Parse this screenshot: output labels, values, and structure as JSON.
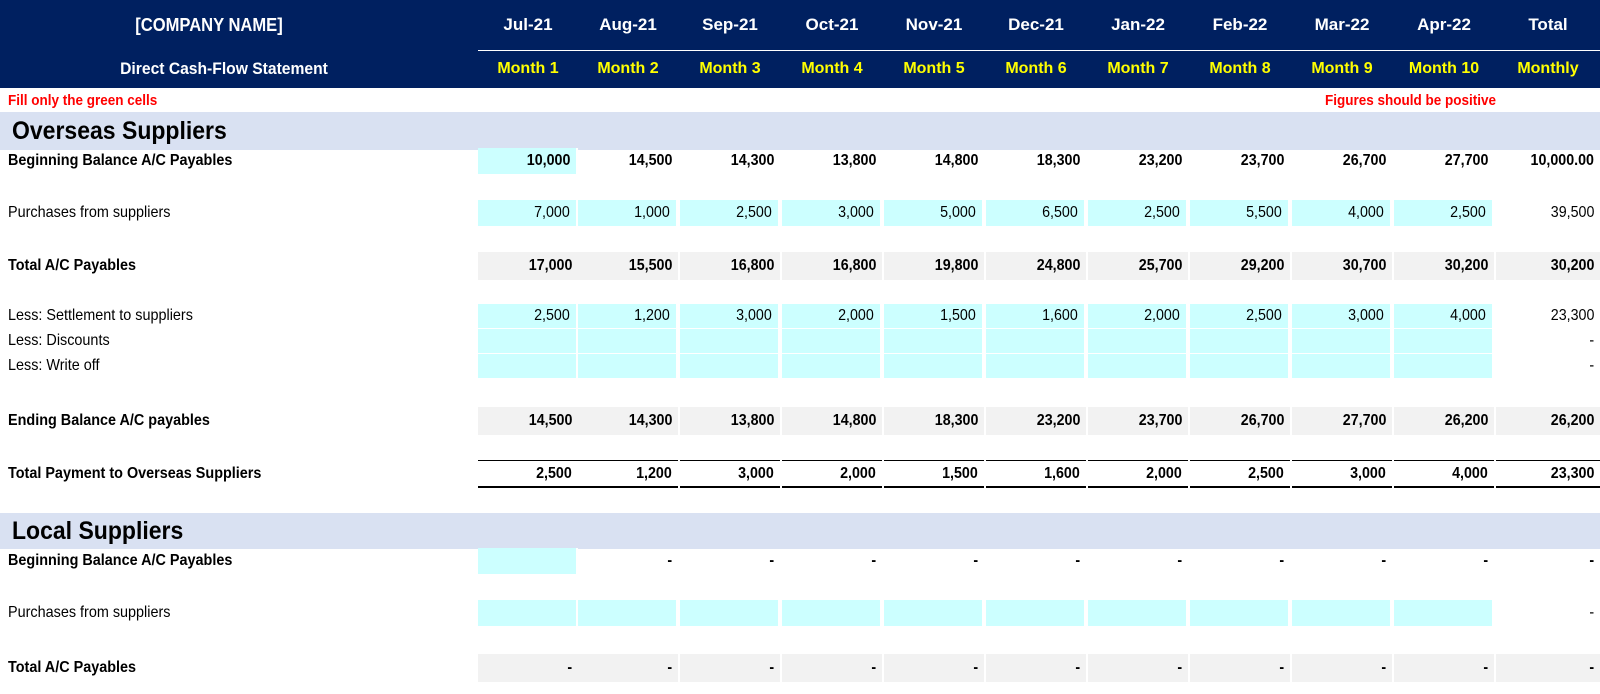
{
  "header": {
    "company": "[COMPANY NAME]",
    "subtitle": "Direct Cash-Flow Statement",
    "months": [
      "Jul-21",
      "Aug-21",
      "Sep-21",
      "Oct-21",
      "Nov-21",
      "Dec-21",
      "Jan-22",
      "Feb-22",
      "Mar-22",
      "Apr-22"
    ],
    "month_labels": [
      "Month 1",
      "Month 2",
      "Month 3",
      "Month 4",
      "Month 5",
      "Month 6",
      "Month 7",
      "Month 8",
      "Month 9",
      "Month 10"
    ],
    "total": "Total",
    "total_sub": "Monthly"
  },
  "notes": {
    "left": "Fill only the green cells",
    "right": "Figures should be positive"
  },
  "overseas": {
    "title": "Overseas Suppliers",
    "beginning": {
      "label": "Beginning Balance A/C Payables",
      "values": [
        "10,000",
        "14,500",
        "14,300",
        "13,800",
        "14,800",
        "18,300",
        "23,200",
        "23,700",
        "26,700",
        "27,700"
      ],
      "total": "10,000.00"
    },
    "purchases": {
      "label": "Purchases from suppliers",
      "values": [
        "7,000",
        "1,000",
        "2,500",
        "3,000",
        "5,000",
        "6,500",
        "2,500",
        "5,500",
        "4,000",
        "2,500"
      ],
      "total": "39,500"
    },
    "total_payables": {
      "label": "Total A/C Payables",
      "values": [
        "17,000",
        "15,500",
        "16,800",
        "16,800",
        "19,800",
        "24,800",
        "25,700",
        "29,200",
        "30,700",
        "30,200"
      ],
      "total": "30,200"
    },
    "settlement": {
      "label": "Less: Settlement to suppliers",
      "values": [
        "2,500",
        "1,200",
        "3,000",
        "2,000",
        "1,500",
        "1,600",
        "2,000",
        "2,500",
        "3,000",
        "4,000"
      ],
      "total": "23,300"
    },
    "discounts": {
      "label": "Less: Discounts",
      "values": [
        "",
        "",
        "",
        "",
        "",
        "",
        "",
        "",
        "",
        ""
      ],
      "total": "-"
    },
    "writeoff": {
      "label": "Less: Write off",
      "values": [
        "",
        "",
        "",
        "",
        "",
        "",
        "",
        "",
        "",
        ""
      ],
      "total": "-"
    },
    "ending": {
      "label": "Ending Balance A/C payables",
      "values": [
        "14,500",
        "14,300",
        "13,800",
        "14,800",
        "18,300",
        "23,200",
        "23,700",
        "26,700",
        "27,700",
        "26,200"
      ],
      "total": "26,200"
    },
    "payment": {
      "label": "Total Payment to Overseas Suppliers",
      "values": [
        "2,500",
        "1,200",
        "3,000",
        "2,000",
        "1,500",
        "1,600",
        "2,000",
        "2,500",
        "3,000",
        "4,000"
      ],
      "total": "23,300"
    }
  },
  "local": {
    "title": "Local Suppliers",
    "beginning": {
      "label": "Beginning Balance A/C Payables",
      "values": [
        "",
        "-",
        "-",
        "-",
        "-",
        "-",
        "-",
        "-",
        "-",
        "-"
      ],
      "total": "-"
    },
    "purchases": {
      "label": "Purchases from suppliers",
      "values": [
        "",
        "",
        "",
        "",
        "",
        "",
        "",
        "",
        "",
        ""
      ],
      "total": "-"
    },
    "total_payables": {
      "label": "Total A/C Payables",
      "values": [
        "-",
        "-",
        "-",
        "-",
        "-",
        "-",
        "-",
        "-",
        "-",
        "-"
      ],
      "total": "-"
    }
  },
  "colors": {
    "header_bg": "#002060",
    "header_month_text": "#ffff00",
    "note_text": "#ff0000",
    "section_bg": "#d9e1f2",
    "input_cell": "#ccffff",
    "shaded_row": "#f2f2f2"
  }
}
